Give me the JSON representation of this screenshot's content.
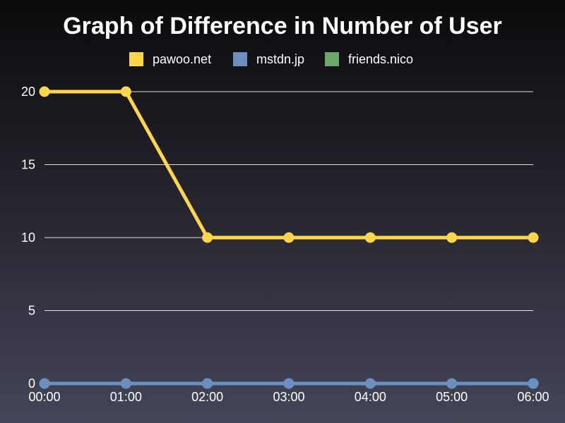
{
  "chart_data": {
    "type": "line",
    "title": "Graph of Difference in Number of User",
    "xlabel": "",
    "ylabel": "",
    "categories": [
      "00:00",
      "01:00",
      "02:00",
      "03:00",
      "04:00",
      "05:00",
      "06:00"
    ],
    "ylim": [
      0,
      20
    ],
    "yticks": [
      0,
      5,
      10,
      15,
      20
    ],
    "grid": true,
    "legend_position": "top-center",
    "series": [
      {
        "name": "pawoo.net",
        "color": "#ffd54a",
        "values": [
          20,
          20,
          10,
          10,
          10,
          10,
          10
        ]
      },
      {
        "name": "mstdn.jp",
        "color": "#6b8fbf",
        "values": [
          0,
          0,
          0,
          0,
          0,
          0,
          0
        ]
      },
      {
        "name": "friends.nico",
        "color": "#6aa86a",
        "values": [
          0,
          0,
          0,
          0,
          0,
          0,
          0
        ]
      }
    ]
  }
}
